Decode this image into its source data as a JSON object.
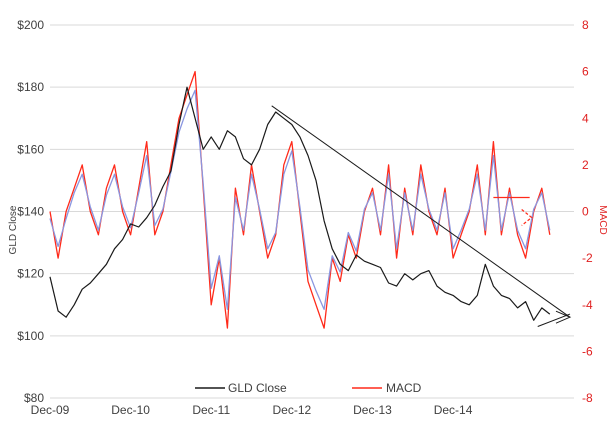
{
  "chart_data": {
    "type": "line",
    "title": "",
    "colors": {
      "gld": "#1a1a1a",
      "macd": "#ff2a1a",
      "signal": "#8a96e0",
      "trend": "#1a1a1a",
      "annotation": "#ff2a1a"
    },
    "x_tick_labels": [
      "Dec-09",
      "Dec-10",
      "Dec-11",
      "Dec-12",
      "Dec-13",
      "Dec-14"
    ],
    "x_tick_years": [
      0,
      1,
      2,
      3,
      4,
      5
    ],
    "x_range_years": [
      0,
      6.5
    ],
    "ylabel_left": "GLD Close",
    "ylabel_right": "MACD",
    "ylim_left": [
      80,
      200
    ],
    "ylim_right": [
      -8,
      8
    ],
    "y_left_ticks": [
      {
        "value": 80,
        "label": "$80"
      },
      {
        "value": 100,
        "label": "$100"
      },
      {
        "value": 120,
        "label": "$120"
      },
      {
        "value": 140,
        "label": "$140"
      },
      {
        "value": 160,
        "label": "$160"
      },
      {
        "value": 180,
        "label": "$180"
      },
      {
        "value": 200,
        "label": "$200"
      }
    ],
    "y_right_ticks": [
      {
        "value": -8,
        "label": "-8"
      },
      {
        "value": -6,
        "label": "-6"
      },
      {
        "value": -4,
        "label": "-4"
      },
      {
        "value": -2,
        "label": "-2"
      },
      {
        "value": 0,
        "label": "0"
      },
      {
        "value": 2,
        "label": "2"
      },
      {
        "value": 4,
        "label": "4"
      },
      {
        "value": 6,
        "label": "6"
      },
      {
        "value": 8,
        "label": "8"
      }
    ],
    "legend": {
      "placement": "bottom-center",
      "items": [
        {
          "name": "GLD Close",
          "color": "#1a1a1a"
        },
        {
          "name": "MACD",
          "color": "#ff2a1a"
        }
      ]
    },
    "series": [
      {
        "name": "GLD Close",
        "axis": "left",
        "x": [
          0.0,
          0.1,
          0.2,
          0.3,
          0.4,
          0.5,
          0.6,
          0.7,
          0.8,
          0.9,
          1.0,
          1.1,
          1.2,
          1.3,
          1.4,
          1.5,
          1.6,
          1.7,
          1.8,
          1.9,
          2.0,
          2.1,
          2.2,
          2.3,
          2.4,
          2.5,
          2.6,
          2.7,
          2.8,
          2.9,
          3.0,
          3.1,
          3.2,
          3.3,
          3.4,
          3.5,
          3.6,
          3.7,
          3.8,
          3.9,
          4.0,
          4.1,
          4.2,
          4.3,
          4.4,
          4.5,
          4.6,
          4.7,
          4.8,
          4.9,
          5.0,
          5.1,
          5.2,
          5.3,
          5.4,
          5.5,
          5.6,
          5.7,
          5.8,
          5.9,
          6.0,
          6.1,
          6.2
        ],
        "values": [
          119,
          108,
          106,
          110,
          115,
          117,
          120,
          123,
          128,
          131,
          136,
          135,
          138,
          142,
          148,
          153,
          168,
          180,
          170,
          160,
          164,
          160,
          166,
          164,
          157,
          155,
          160,
          168,
          172,
          170,
          168,
          164,
          158,
          150,
          137,
          128,
          123,
          121,
          126,
          124,
          123,
          122,
          117,
          116,
          120,
          118,
          120,
          121,
          116,
          114,
          113,
          111,
          110,
          113,
          123,
          116,
          113,
          112,
          109,
          111,
          105,
          109,
          107
        ]
      },
      {
        "name": "MACD",
        "axis": "right",
        "x": [
          0.0,
          0.1,
          0.2,
          0.3,
          0.4,
          0.5,
          0.6,
          0.7,
          0.8,
          0.9,
          1.0,
          1.1,
          1.2,
          1.3,
          1.4,
          1.5,
          1.6,
          1.7,
          1.8,
          1.9,
          2.0,
          2.1,
          2.2,
          2.3,
          2.4,
          2.5,
          2.6,
          2.7,
          2.8,
          2.9,
          3.0,
          3.1,
          3.2,
          3.3,
          3.4,
          3.5,
          3.6,
          3.7,
          3.8,
          3.9,
          4.0,
          4.1,
          4.2,
          4.3,
          4.4,
          4.5,
          4.6,
          4.7,
          4.8,
          4.9,
          5.0,
          5.1,
          5.2,
          5.3,
          5.4,
          5.5,
          5.6,
          5.7,
          5.8,
          5.9,
          6.0,
          6.1,
          6.2
        ],
        "values": [
          0,
          -2,
          0,
          1,
          2,
          0,
          -1,
          1,
          2,
          0,
          -1,
          1,
          3,
          -1,
          0,
          2,
          4,
          5,
          6,
          1,
          -4,
          -2,
          -5,
          1,
          -1,
          2,
          0,
          -2,
          -1,
          2,
          3,
          0,
          -3,
          -4,
          -5,
          -2,
          -3,
          -1,
          -2,
          0,
          1,
          -1,
          2,
          -2,
          1,
          -1,
          2,
          0,
          -1,
          1,
          -2,
          -1,
          0,
          2,
          -1,
          3,
          -1,
          1,
          -1,
          -2,
          0,
          1,
          -1
        ]
      },
      {
        "name": "Signal",
        "axis": "right",
        "x": [
          0.0,
          0.1,
          0.2,
          0.3,
          0.4,
          0.5,
          0.6,
          0.7,
          0.8,
          0.9,
          1.0,
          1.1,
          1.2,
          1.3,
          1.4,
          1.5,
          1.6,
          1.7,
          1.8,
          1.9,
          2.0,
          2.1,
          2.2,
          2.3,
          2.4,
          2.5,
          2.6,
          2.7,
          2.8,
          2.9,
          3.0,
          3.1,
          3.2,
          3.3,
          3.4,
          3.5,
          3.6,
          3.7,
          3.8,
          3.9,
          4.0,
          4.1,
          4.2,
          4.3,
          4.4,
          4.5,
          4.6,
          4.7,
          4.8,
          4.9,
          5.0,
          5.1,
          5.2,
          5.3,
          5.4,
          5.5,
          5.6,
          5.7,
          5.8,
          5.9,
          6.0,
          6.1,
          6.2
        ],
        "values": [
          -0.3,
          -1.5,
          -0.3,
          0.8,
          1.6,
          0.2,
          -0.8,
          0.7,
          1.6,
          0.2,
          -0.7,
          0.8,
          2.4,
          -0.6,
          0.1,
          1.7,
          3.4,
          4.4,
          5.2,
          1.2,
          -3.3,
          -1.9,
          -4.2,
          0.6,
          -0.8,
          1.6,
          0.1,
          -1.6,
          -0.9,
          1.6,
          2.6,
          0.2,
          -2.5,
          -3.4,
          -4.2,
          -1.9,
          -2.6,
          -0.9,
          -1.7,
          0.1,
          0.8,
          -0.8,
          1.6,
          -1.6,
          0.8,
          -0.8,
          1.6,
          0.1,
          -0.8,
          0.8,
          -1.6,
          -0.8,
          0.1,
          1.6,
          -0.8,
          2.4,
          -0.8,
          0.8,
          -0.8,
          -1.6,
          0.1,
          0.8,
          -0.8
        ]
      }
    ],
    "trendlines": [
      {
        "name": "downtrend",
        "axis": "left",
        "x": [
          2.75,
          6.45
        ],
        "y": [
          174,
          106
        ]
      },
      {
        "name": "support",
        "axis": "left",
        "x": [
          6.05,
          6.45
        ],
        "y": [
          103,
          107
        ]
      }
    ],
    "annotations": [
      {
        "name": "macd-resistance",
        "axis": "right",
        "x": [
          5.5,
          5.95
        ],
        "y": [
          0.6,
          0.6
        ]
      }
    ]
  }
}
